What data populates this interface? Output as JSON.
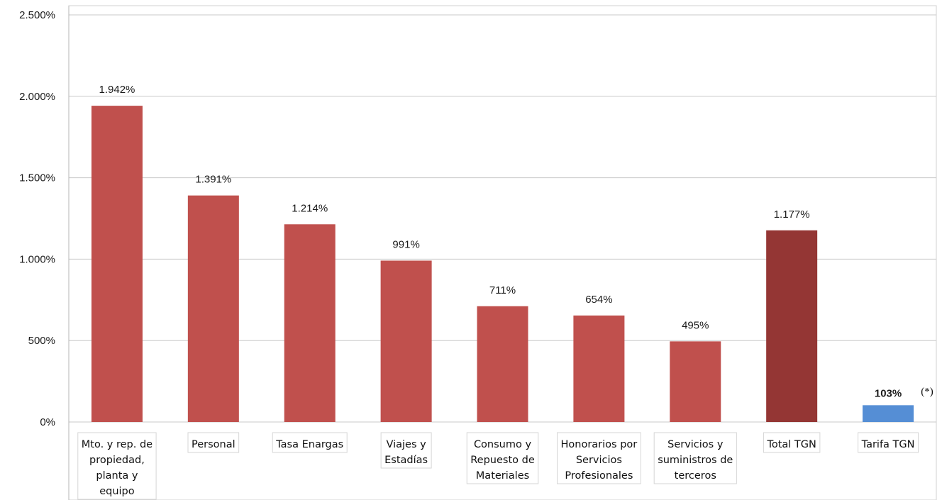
{
  "chart_data": {
    "type": "bar",
    "categories": [
      [
        "Mto. y rep. de",
        "propiedad,",
        "planta y",
        "equipo"
      ],
      [
        "Personal"
      ],
      [
        "Tasa Enargas"
      ],
      [
        "Viajes y",
        "Estadías"
      ],
      [
        "Consumo y",
        "Repuesto de",
        "Materiales"
      ],
      [
        "Honorarios por",
        "Servicios",
        "Profesionales"
      ],
      [
        "Servicios y",
        "suministros de",
        "terceros"
      ],
      [
        "Total  TGN"
      ],
      [
        "Tarifa TGN"
      ]
    ],
    "values": [
      1942,
      1391,
      1214,
      991,
      711,
      654,
      495,
      1177,
      103
    ],
    "data_labels": [
      "1.942%",
      "1.391%",
      "1.214%",
      "991%",
      "711%",
      "654%",
      "495%",
      "1.177%",
      "103%"
    ],
    "bar_colors": [
      "#c0504d",
      "#c0504d",
      "#c0504d",
      "#c0504d",
      "#c0504d",
      "#c0504d",
      "#c0504d",
      "#943634",
      "#558ed5"
    ],
    "ylim": [
      0,
      2500
    ],
    "yticks": [
      0,
      500,
      1000,
      1500,
      2000,
      2500
    ],
    "ytick_labels": [
      "0%",
      "500%",
      "1.000%",
      "1.500%",
      "2.000%",
      "2.500%"
    ],
    "grid": true,
    "annotations": [
      "(*)"
    ],
    "title": "",
    "xlabel": "",
    "ylabel": ""
  }
}
